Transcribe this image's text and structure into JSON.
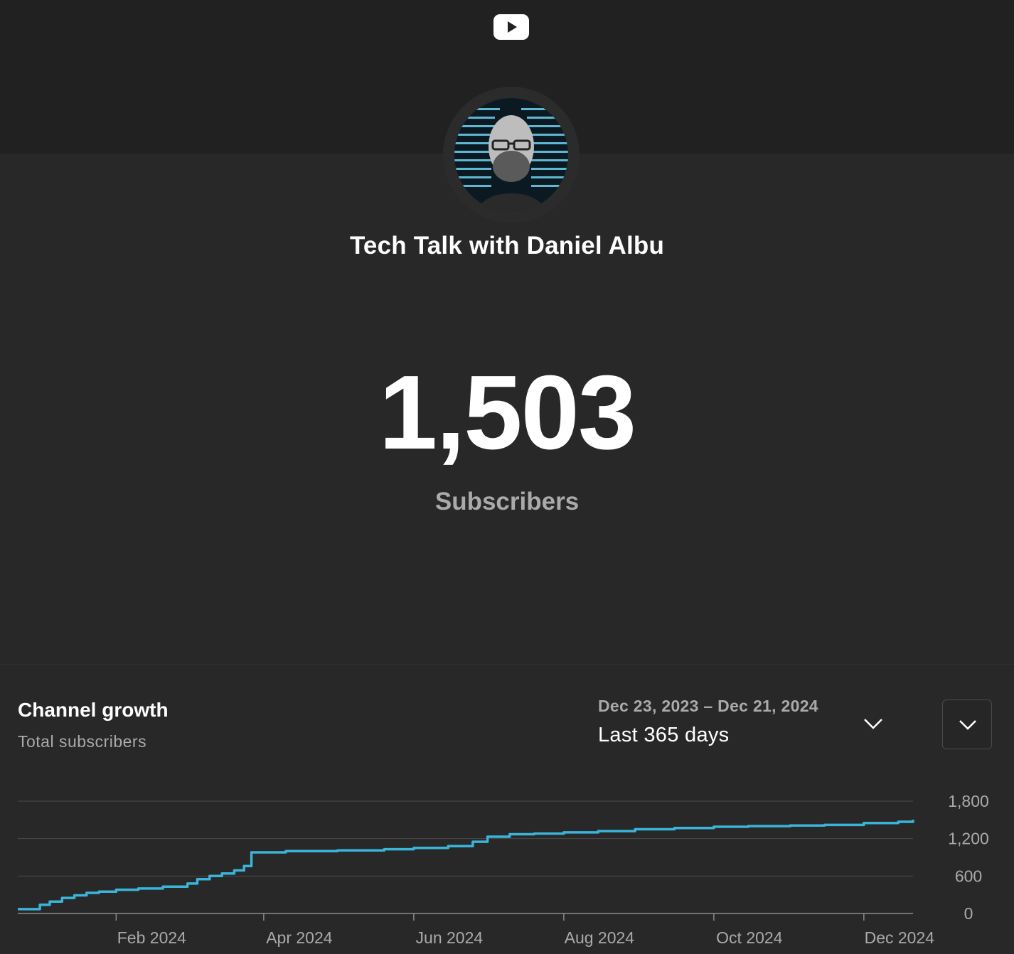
{
  "header": {
    "logo_icon": "youtube-play-icon",
    "channel_name": "Tech Talk with Daniel Albu",
    "avatar_icon": "channel-avatar-photo"
  },
  "stats": {
    "subscriber_count": "1,503",
    "subscriber_label": "Subscribers"
  },
  "growth": {
    "title": "Channel growth",
    "subtitle": "Total subscribers",
    "date_range": "Dec 23, 2023 – Dec 21, 2024",
    "range_label": "Last 365 days",
    "range_dropdown_icon": "chevron-down-icon",
    "menu_icon": "chevron-down-icon"
  },
  "colors": {
    "background": "#282828",
    "banner": "#212121",
    "line": "#3ab4d9",
    "grid": "#4a4a4a",
    "axis_text": "#aaaaaa"
  },
  "chart_data": {
    "type": "line",
    "x_start": "2023-12-23",
    "x_end": "2024-12-21",
    "ylim": [
      0,
      1800
    ],
    "yticks": [
      0,
      600,
      1200,
      1800
    ],
    "ytick_labels": [
      "0",
      "600",
      "1,200",
      "1,800"
    ],
    "xticks": [
      {
        "date": "2024-02-01",
        "label": "Feb 2024"
      },
      {
        "date": "2024-04-01",
        "label": "Apr 2024"
      },
      {
        "date": "2024-06-01",
        "label": "Jun 2024"
      },
      {
        "date": "2024-08-01",
        "label": "Aug 2024"
      },
      {
        "date": "2024-10-01",
        "label": "Oct 2024"
      },
      {
        "date": "2024-12-01",
        "label": "Dec 2024"
      }
    ],
    "grid": true,
    "series": [
      {
        "x": [
          "2023-12-23",
          "2023-12-30",
          "2024-01-01",
          "2024-01-05",
          "2024-01-10",
          "2024-01-15",
          "2024-01-20",
          "2024-01-25",
          "2024-02-01",
          "2024-02-10",
          "2024-02-20",
          "2024-03-01",
          "2024-03-05",
          "2024-03-10",
          "2024-03-15",
          "2024-03-20",
          "2024-03-24",
          "2024-03-27",
          "2024-04-10",
          "2024-05-01",
          "2024-05-20",
          "2024-06-01",
          "2024-06-15",
          "2024-06-25",
          "2024-07-01",
          "2024-07-10",
          "2024-07-20",
          "2024-08-01",
          "2024-08-15",
          "2024-08-30",
          "2024-09-15",
          "2024-10-01",
          "2024-10-15",
          "2024-11-01",
          "2024-11-15",
          "2024-12-01",
          "2024-12-15",
          "2024-12-21"
        ],
        "y": [
          70,
          70,
          140,
          190,
          250,
          290,
          330,
          350,
          380,
          400,
          430,
          480,
          550,
          600,
          640,
          690,
          760,
          980,
          1000,
          1010,
          1030,
          1050,
          1080,
          1150,
          1230,
          1270,
          1280,
          1300,
          1320,
          1350,
          1370,
          1390,
          1400,
          1410,
          1420,
          1450,
          1470,
          1503
        ]
      }
    ]
  }
}
